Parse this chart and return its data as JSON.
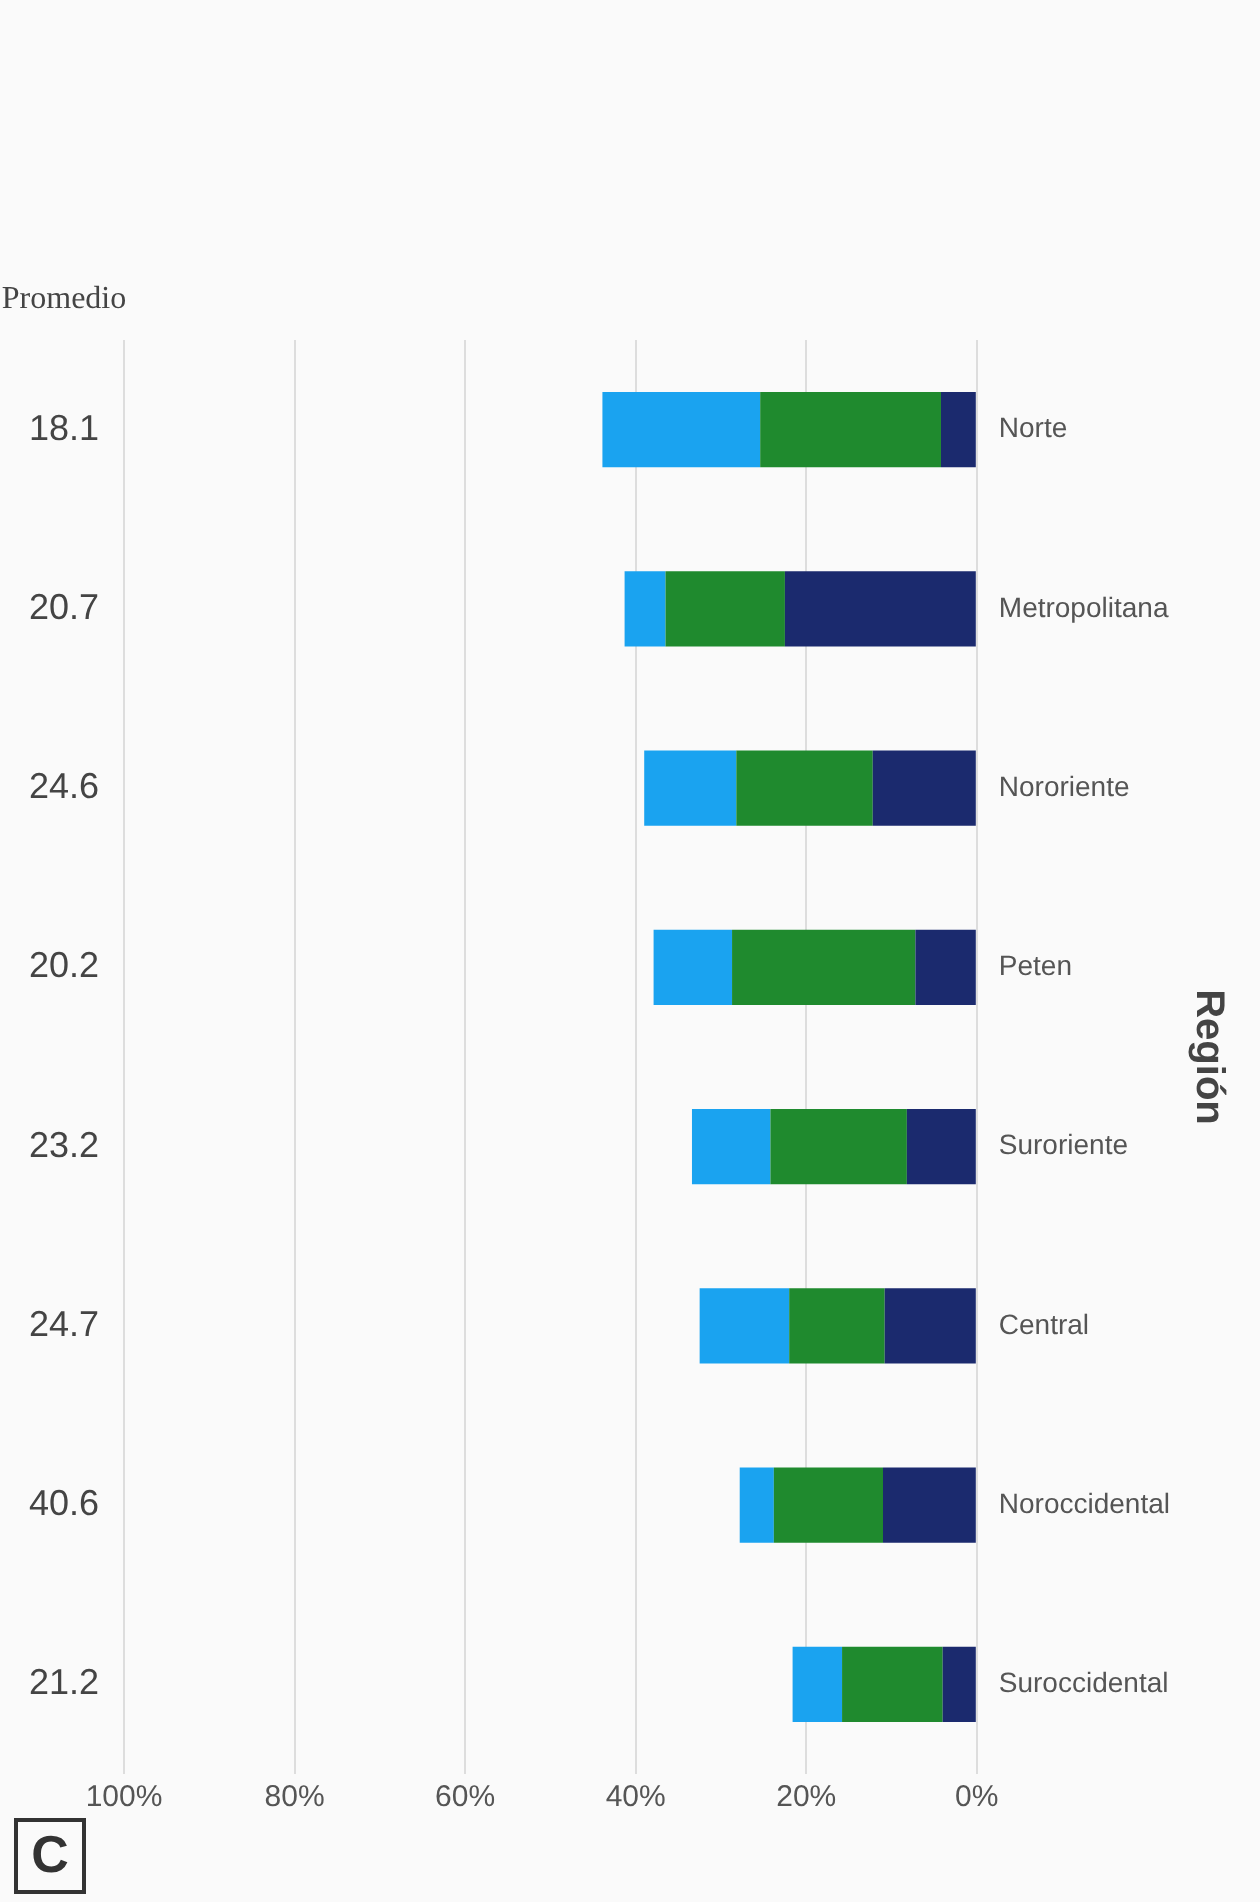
{
  "chart_data": {
    "type": "bar",
    "orientation": "horizontal",
    "stacked": true,
    "ylabel": "Región",
    "categories": [
      "Norte",
      "Metropolitana",
      "Nororiente",
      "Peten",
      "Suroriente",
      "Central",
      "Noroccidental",
      "Suroccidental"
    ],
    "series": [
      {
        "color": "#1b2a6e",
        "values": [
          4.2,
          22.5,
          12.2,
          7.2,
          8.2,
          10.8,
          11,
          4
        ]
      },
      {
        "color": "#1f8a2e",
        "values": [
          21.2,
          14,
          16,
          21.5,
          16,
          11.2,
          12.8,
          11.8
        ]
      },
      {
        "color": "#1aa3f0",
        "values": [
          18.5,
          4.8,
          10.8,
          9.2,
          9.2,
          10.5,
          4,
          5.8
        ]
      }
    ],
    "xlim": [
      100,
      0
    ],
    "xticks": [
      {
        "value": 100,
        "label": "100%"
      },
      {
        "value": 80,
        "label": "80%"
      },
      {
        "value": 60,
        "label": "60%"
      },
      {
        "value": 40,
        "label": "40%"
      },
      {
        "value": 20,
        "label": "20%"
      },
      {
        "value": 0,
        "label": "0%"
      }
    ],
    "grid": "x",
    "legend": false,
    "annotations": [
      "Promedio",
      "18.1",
      "20.7",
      "24.6",
      "20.2",
      "23.2",
      "24.7",
      "40.6",
      "21.2",
      "C"
    ]
  }
}
